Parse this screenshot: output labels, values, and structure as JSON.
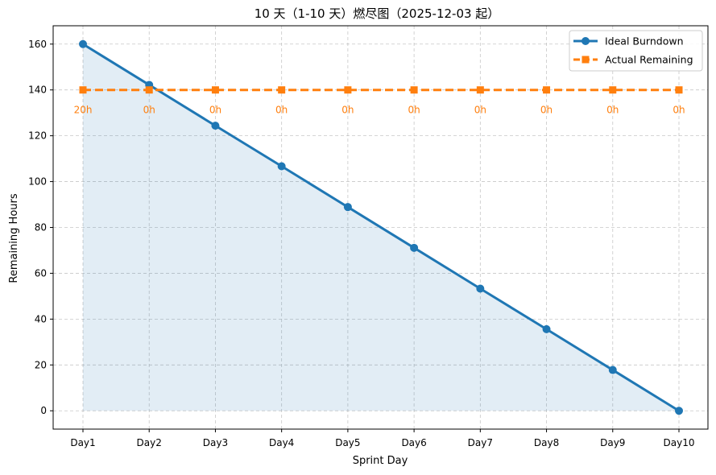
{
  "chart_data": {
    "type": "line",
    "title": "10 天（1-10 天）燃尽图（2025-12-03 起）",
    "xlabel": "Sprint Day",
    "ylabel": "Remaining Hours",
    "categories": [
      "Day1",
      "Day2",
      "Day3",
      "Day4",
      "Day5",
      "Day6",
      "Day7",
      "Day8",
      "Day9",
      "Day10"
    ],
    "ylim": [
      -8,
      168
    ],
    "yticks": [
      0,
      20,
      40,
      60,
      80,
      100,
      120,
      140,
      160
    ],
    "grid": true,
    "legend_position": "top-right",
    "series": [
      {
        "name": "Ideal Burndown",
        "color": "#1f77b4",
        "marker": "circle",
        "line_style": "solid",
        "fill_area": true,
        "values": [
          160,
          142.2,
          124.4,
          106.7,
          88.9,
          71.1,
          53.3,
          35.6,
          17.8,
          0
        ]
      },
      {
        "name": "Actual Remaining",
        "color": "#ff7f0e",
        "marker": "square",
        "line_style": "dashed",
        "values": [
          140,
          140,
          140,
          140,
          140,
          140,
          140,
          140,
          140,
          140
        ],
        "data_labels": [
          "20h",
          "0h",
          "0h",
          "0h",
          "0h",
          "0h",
          "0h",
          "0h",
          "0h",
          "0h"
        ]
      }
    ]
  }
}
